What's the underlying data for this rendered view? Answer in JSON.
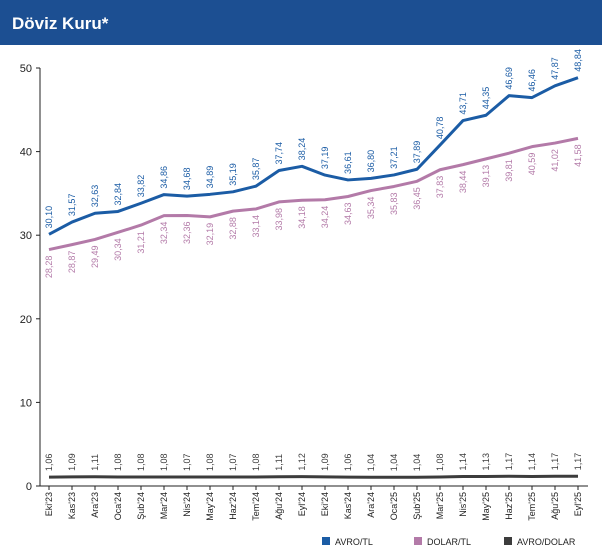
{
  "chart_data": {
    "type": "line",
    "title": "Döviz Kuru*",
    "categories": [
      "Eki'23",
      "Kas'23",
      "Ara'23",
      "Oca'24",
      "Şub'24",
      "Mar'24",
      "Nis'24",
      "May'24",
      "Haz'24",
      "Tem'24",
      "Ağu'24",
      "Eyl'24",
      "Eki'24",
      "Kas'24",
      "Ara'24",
      "Oca'25",
      "Şub'25",
      "Mar'25",
      "Nis'25",
      "May'25",
      "Haz'25",
      "Tem'25",
      "Ağu'25",
      "Eyl'25"
    ],
    "series": [
      {
        "name": "AVRO/TL",
        "color": "#1b5ca5",
        "values": [
          30.1,
          31.57,
          32.63,
          32.84,
          33.82,
          34.86,
          34.68,
          34.89,
          35.19,
          35.87,
          37.74,
          38.24,
          37.19,
          36.61,
          36.8,
          37.21,
          37.89,
          40.78,
          43.71,
          44.35,
          46.69,
          46.46,
          47.87,
          48.84
        ],
        "value_labels": [
          "30,10",
          "31,57",
          "32,63",
          "32,84",
          "33,82",
          "34,86",
          "34,68",
          "34,89",
          "35,19",
          "35,87",
          "37,74",
          "38,24",
          "37,19",
          "36,61",
          "36,80",
          "37,21",
          "37,89",
          "40,78",
          "43,71",
          "44,35",
          "46,69",
          "46,46",
          "47,87",
          "48,84"
        ]
      },
      {
        "name": "DOLAR/TL",
        "color": "#b37aa8",
        "values": [
          28.28,
          28.87,
          29.49,
          30.34,
          31.21,
          32.34,
          32.36,
          32.19,
          32.88,
          33.14,
          33.98,
          34.18,
          34.24,
          34.63,
          35.34,
          35.83,
          36.45,
          37.83,
          38.44,
          39.13,
          39.81,
          40.59,
          41.02,
          41.58
        ],
        "value_labels": [
          "28,28",
          "28,87",
          "29,49",
          "30,34",
          "31,21",
          "32,34",
          "32,36",
          "32,19",
          "32,88",
          "33,14",
          "33,98",
          "34,18",
          "34,24",
          "34,63",
          "35,34",
          "35,83",
          "36,45",
          "37,83",
          "38,44",
          "39,13",
          "39,81",
          "40,59",
          "41,02",
          "41,58"
        ]
      },
      {
        "name": "AVRO/DOLAR",
        "color": "#3c3c3c",
        "values": [
          1.06,
          1.09,
          1.11,
          1.08,
          1.08,
          1.08,
          1.07,
          1.08,
          1.07,
          1.08,
          1.11,
          1.12,
          1.09,
          1.06,
          1.04,
          1.04,
          1.04,
          1.08,
          1.14,
          1.13,
          1.17,
          1.14,
          1.17,
          1.17
        ],
        "value_labels": [
          "1,06",
          "1,09",
          "1,11",
          "1,08",
          "1,08",
          "1,08",
          "1,07",
          "1,08",
          "1,07",
          "1,08",
          "1,11",
          "1,12",
          "1,09",
          "1,06",
          "1,04",
          "1,04",
          "1,04",
          "1,08",
          "1,14",
          "1,13",
          "1,17",
          "1,14",
          "1,17",
          "1,17"
        ]
      }
    ],
    "ylim": [
      0,
      50
    ],
    "yticks": [
      0,
      10,
      20,
      30,
      40,
      50
    ],
    "grid": false,
    "legend": "bottom-right"
  }
}
